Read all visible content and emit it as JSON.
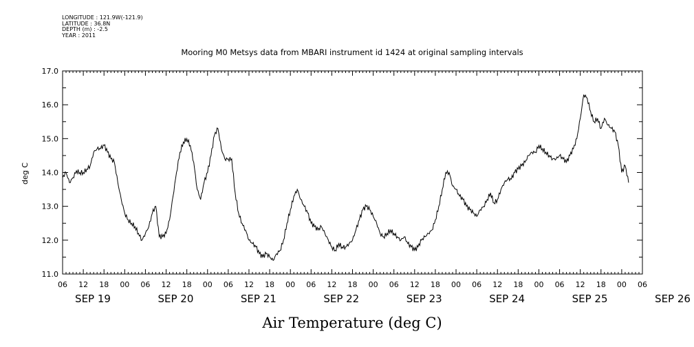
{
  "header": {
    "longitude": "LONGITUDE : 121.9W(-121.9)",
    "latitude": "LATITUDE : 36.8N",
    "depth": "DEPTH (m) : -2.5",
    "year": "YEAR : 2011"
  },
  "chart_data": {
    "type": "line",
    "title": "Mooring M0 Metsys data from MBARI instrument id 1424 at original sampling intervals",
    "ylabel": "deg C",
    "xlabel": "Air Temperature (deg C)",
    "ylim": [
      11.0,
      17.0
    ],
    "yticks": [
      "11.0",
      "12.0",
      "13.0",
      "14.0",
      "15.0",
      "16.0",
      "17.0"
    ],
    "xlim_hours": [
      0,
      168
    ],
    "x_hour_ticks": [
      "06",
      "12",
      "18",
      "00",
      "06",
      "12",
      "18",
      "00",
      "06",
      "12",
      "18",
      "00",
      "06",
      "12",
      "18",
      "00",
      "06",
      "12",
      "18",
      "00",
      "06",
      "12",
      "18",
      "00",
      "06",
      "12",
      "18",
      "00",
      "06"
    ],
    "x_day_labels": [
      "SEP 19",
      "SEP 20",
      "SEP 21",
      "SEP 22",
      "SEP 23",
      "SEP 24",
      "SEP 25",
      "SEP 26"
    ],
    "series": [
      {
        "color": "#000000",
        "time_start": "SEP 19 06",
        "step_hours": 1,
        "values": [
          13.85,
          14.0,
          13.7,
          13.85,
          14.05,
          14.0,
          14.0,
          14.1,
          14.2,
          14.6,
          14.7,
          14.7,
          14.8,
          14.6,
          14.4,
          14.3,
          13.7,
          13.2,
          12.8,
          12.6,
          12.5,
          12.4,
          12.2,
          12.0,
          12.2,
          12.4,
          12.8,
          13.0,
          12.1,
          12.1,
          12.2,
          12.6,
          13.3,
          14.0,
          14.6,
          14.9,
          15.0,
          14.8,
          14.3,
          13.5,
          13.2,
          13.7,
          14.0,
          14.5,
          15.1,
          15.3,
          14.7,
          14.4,
          14.4,
          14.4,
          13.4,
          12.8,
          12.5,
          12.3,
          12.0,
          11.9,
          11.8,
          11.6,
          11.5,
          11.6,
          11.5,
          11.4,
          11.6,
          11.7,
          12.0,
          12.5,
          12.9,
          13.3,
          13.5,
          13.2,
          13.0,
          12.8,
          12.5,
          12.4,
          12.3,
          12.4,
          12.2,
          12.0,
          11.8,
          11.7,
          11.9,
          11.8,
          11.8,
          11.9,
          12.0,
          12.3,
          12.6,
          12.9,
          13.0,
          12.9,
          12.7,
          12.5,
          12.2,
          12.1,
          12.2,
          12.3,
          12.2,
          12.1,
          12.0,
          12.1,
          11.9,
          11.8,
          11.7,
          11.8,
          12.0,
          12.1,
          12.2,
          12.3,
          12.6,
          13.0,
          13.5,
          14.0,
          14.0,
          13.6,
          13.5,
          13.3,
          13.2,
          13.0,
          12.9,
          12.8,
          12.7,
          12.9,
          13.0,
          13.2,
          13.4,
          13.1,
          13.2,
          13.5,
          13.7,
          13.8,
          13.8,
          14.0,
          14.1,
          14.2,
          14.3,
          14.5,
          14.6,
          14.6,
          14.8,
          14.7,
          14.6,
          14.5,
          14.4,
          14.4,
          14.5,
          14.4,
          14.3,
          14.5,
          14.7,
          15.0,
          15.6,
          16.3,
          16.2,
          15.8,
          15.5,
          15.6,
          15.3,
          15.6,
          15.4,
          15.3,
          15.2,
          14.8,
          14.0,
          14.2,
          13.7
        ]
      }
    ]
  }
}
